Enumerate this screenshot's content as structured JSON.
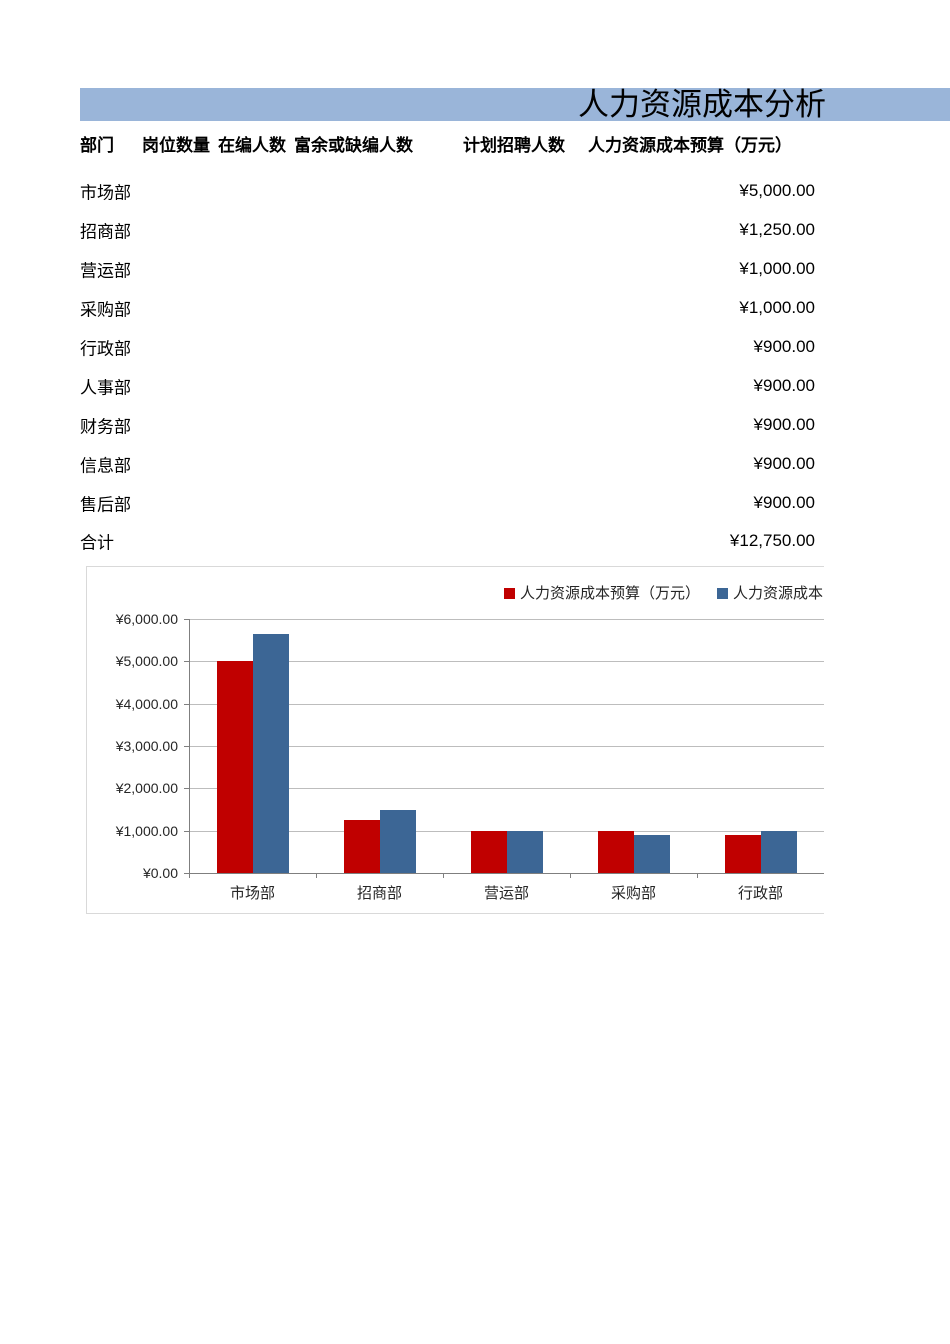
{
  "title": "人力资源成本分析",
  "colors": {
    "banner": "#9AB5D9",
    "series_budget": "#C00000",
    "series_actual": "#3C6695",
    "gridline": "#BDBDBD",
    "axis": "#7F7F7F",
    "chart_border": "#D9D9D9"
  },
  "table": {
    "headers": [
      "部门",
      "岗位数量",
      "在编人数",
      "富余或缺编人数",
      "计划招聘人数",
      "人力资源成本预算（万元）"
    ],
    "rows": [
      {
        "department": "市场部",
        "budget": "¥5,000.00"
      },
      {
        "department": "招商部",
        "budget": "¥1,250.00"
      },
      {
        "department": "营运部",
        "budget": "¥1,000.00"
      },
      {
        "department": "采购部",
        "budget": "¥1,000.00"
      },
      {
        "department": "行政部",
        "budget": "¥900.00"
      },
      {
        "department": "人事部",
        "budget": "¥900.00"
      },
      {
        "department": "财务部",
        "budget": "¥900.00"
      },
      {
        "department": "信息部",
        "budget": "¥900.00"
      },
      {
        "department": "售后部",
        "budget": "¥900.00"
      }
    ],
    "total": {
      "department": "合计",
      "budget": "¥12,750.00"
    }
  },
  "chart_data": {
    "type": "bar",
    "categories": [
      "市场部",
      "招商部",
      "营运部",
      "采购部",
      "行政部"
    ],
    "series": [
      {
        "name": "人力资源成本预算（万元）",
        "color": "#C00000",
        "values": [
          5000,
          1250,
          1000,
          1000,
          900
        ]
      },
      {
        "name": "人力资源成本",
        "color": "#3C6695",
        "values": [
          5650,
          1500,
          1000,
          900,
          1000
        ]
      }
    ],
    "title": "",
    "xlabel": "",
    "ylabel": "",
    "ylim": [
      0,
      6000
    ],
    "ytick_step": 1000,
    "ytick_prefix": "¥",
    "grid": true,
    "legend_position": "top"
  }
}
